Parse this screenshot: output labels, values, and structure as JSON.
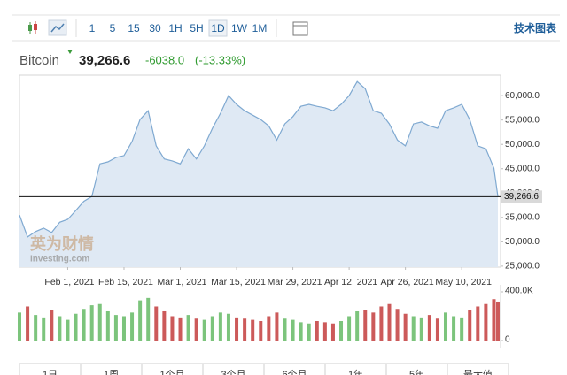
{
  "toolbar": {
    "intervals": [
      "1",
      "5",
      "15",
      "30",
      "1H",
      "5H",
      "1D",
      "1W",
      "1M"
    ],
    "active_index": 6,
    "right_link": "技术图表"
  },
  "header": {
    "name": "Bitcoin",
    "price": "39,266.6",
    "change": "-6038.0",
    "change_percent": "(-13.33%)"
  },
  "watermark": {
    "brand": "英为财情",
    "site": "Investing.com"
  },
  "range_tabs": [
    "1日",
    "1周",
    "1个月",
    "3个月",
    "6个月",
    "1年",
    "5年",
    "最大值"
  ],
  "chart_data": [
    {
      "type": "area",
      "color": "#7fa9d1",
      "fill": "#dfe9f4",
      "grid": false,
      "x": [
        "2021-01-20",
        "2021-01-22",
        "2021-01-24",
        "2021-01-26",
        "2021-01-28",
        "2021-01-30",
        "2021-02-01",
        "2021-02-03",
        "2021-02-05",
        "2021-02-07",
        "2021-02-09",
        "2021-02-11",
        "2021-02-13",
        "2021-02-15",
        "2021-02-17",
        "2021-02-19",
        "2021-02-21",
        "2021-02-23",
        "2021-02-25",
        "2021-02-27",
        "2021-03-01",
        "2021-03-03",
        "2021-03-05",
        "2021-03-07",
        "2021-03-09",
        "2021-03-11",
        "2021-03-13",
        "2021-03-15",
        "2021-03-17",
        "2021-03-19",
        "2021-03-21",
        "2021-03-23",
        "2021-03-25",
        "2021-03-27",
        "2021-03-29",
        "2021-03-31",
        "2021-04-02",
        "2021-04-04",
        "2021-04-06",
        "2021-04-08",
        "2021-04-10",
        "2021-04-12",
        "2021-04-14",
        "2021-04-16",
        "2021-04-18",
        "2021-04-20",
        "2021-04-22",
        "2021-04-24",
        "2021-04-26",
        "2021-04-28",
        "2021-04-30",
        "2021-05-02",
        "2021-05-04",
        "2021-05-06",
        "2021-05-08",
        "2021-05-10",
        "2021-05-12",
        "2021-05-14",
        "2021-05-16",
        "2021-05-18",
        "2021-05-19"
      ],
      "values": [
        35500,
        31000,
        32100,
        32800,
        31900,
        34000,
        34600,
        36400,
        38300,
        39300,
        46000,
        46400,
        47300,
        47700,
        50600,
        55100,
        56900,
        49700,
        47000,
        46600,
        46000,
        49100,
        47000,
        49700,
        53300,
        56400,
        60000,
        58200,
        56900,
        56000,
        55100,
        53800,
        50900,
        54200,
        55700,
        57800,
        58200,
        57800,
        57500,
        56900,
        58200,
        60000,
        62900,
        61400,
        56900,
        56400,
        54200,
        50900,
        49700,
        54200,
        54600,
        53800,
        53300,
        56900,
        57500,
        58200,
        55100,
        49700,
        49100,
        45100,
        39266.6
      ],
      "xlim": [
        "2021-01-20",
        "2021-05-19"
      ],
      "xticks": [
        {
          "value": "2021-02-01",
          "label": "Feb 1, 2021"
        },
        {
          "value": "2021-02-15",
          "label": "Feb 15, 2021"
        },
        {
          "value": "2021-03-01",
          "label": "Mar 1, 2021"
        },
        {
          "value": "2021-03-15",
          "label": "Mar 15, 2021"
        },
        {
          "value": "2021-03-29",
          "label": "Mar 29, 2021"
        },
        {
          "value": "2021-04-12",
          "label": "Apr 12, 2021"
        },
        {
          "value": "2021-04-26",
          "label": "Apr 26, 2021"
        },
        {
          "value": "2021-05-10",
          "label": "May 10, 2021"
        }
      ],
      "ylim": [
        24800,
        64200
      ],
      "yticks": [
        {
          "value": 25000,
          "label": "25,000.0"
        },
        {
          "value": 30000,
          "label": "30,000.0"
        },
        {
          "value": 35000,
          "label": "35,000.0"
        },
        {
          "value": 40000,
          "label": "40,000.0"
        },
        {
          "value": 45000,
          "label": "45,000.0"
        },
        {
          "value": 50000,
          "label": "50,000.0"
        },
        {
          "value": 55000,
          "label": "55,000.0"
        },
        {
          "value": 60000,
          "label": "60,000.0"
        }
      ],
      "reference_line": {
        "value": 39266.6,
        "label": "39,266.6"
      }
    },
    {
      "type": "bar",
      "x": [
        "2021-01-20",
        "2021-01-22",
        "2021-01-24",
        "2021-01-26",
        "2021-01-28",
        "2021-01-30",
        "2021-02-01",
        "2021-02-03",
        "2021-02-05",
        "2021-02-07",
        "2021-02-09",
        "2021-02-11",
        "2021-02-13",
        "2021-02-15",
        "2021-02-17",
        "2021-02-19",
        "2021-02-21",
        "2021-02-23",
        "2021-02-25",
        "2021-02-27",
        "2021-03-01",
        "2021-03-03",
        "2021-03-05",
        "2021-03-07",
        "2021-03-09",
        "2021-03-11",
        "2021-03-13",
        "2021-03-15",
        "2021-03-17",
        "2021-03-19",
        "2021-03-21",
        "2021-03-23",
        "2021-03-25",
        "2021-03-27",
        "2021-03-29",
        "2021-03-31",
        "2021-04-02",
        "2021-04-04",
        "2021-04-06",
        "2021-04-08",
        "2021-04-10",
        "2021-04-12",
        "2021-04-14",
        "2021-04-16",
        "2021-04-18",
        "2021-04-20",
        "2021-04-22",
        "2021-04-24",
        "2021-04-26",
        "2021-04-28",
        "2021-04-30",
        "2021-05-02",
        "2021-05-04",
        "2021-05-06",
        "2021-05-08",
        "2021-05-10",
        "2021-05-12",
        "2021-05-14",
        "2021-05-16",
        "2021-05-18",
        "2021-05-19"
      ],
      "values": [
        230000,
        280000,
        210000,
        190000,
        250000,
        200000,
        170000,
        220000,
        260000,
        290000,
        300000,
        240000,
        210000,
        200000,
        230000,
        330000,
        350000,
        280000,
        240000,
        200000,
        190000,
        210000,
        180000,
        170000,
        200000,
        230000,
        220000,
        190000,
        180000,
        170000,
        160000,
        200000,
        230000,
        180000,
        170000,
        150000,
        140000,
        160000,
        150000,
        140000,
        160000,
        200000,
        240000,
        250000,
        230000,
        280000,
        300000,
        260000,
        220000,
        200000,
        190000,
        210000,
        180000,
        230000,
        200000,
        190000,
        250000,
        280000,
        300000,
        340000,
        320000
      ],
      "colors": [
        "#7cc47c",
        "#cc5a5a",
        "#7cc47c",
        "#7cc47c",
        "#cc5a5a",
        "#7cc47c",
        "#7cc47c",
        "#7cc47c",
        "#7cc47c",
        "#7cc47c",
        "#7cc47c",
        "#7cc47c",
        "#7cc47c",
        "#7cc47c",
        "#7cc47c",
        "#7cc47c",
        "#7cc47c",
        "#cc5a5a",
        "#cc5a5a",
        "#cc5a5a",
        "#cc5a5a",
        "#7cc47c",
        "#cc5a5a",
        "#7cc47c",
        "#7cc47c",
        "#7cc47c",
        "#7cc47c",
        "#cc5a5a",
        "#cc5a5a",
        "#cc5a5a",
        "#cc5a5a",
        "#cc5a5a",
        "#cc5a5a",
        "#7cc47c",
        "#7cc47c",
        "#7cc47c",
        "#7cc47c",
        "#cc5a5a",
        "#cc5a5a",
        "#cc5a5a",
        "#7cc47c",
        "#7cc47c",
        "#7cc47c",
        "#cc5a5a",
        "#cc5a5a",
        "#cc5a5a",
        "#cc5a5a",
        "#cc5a5a",
        "#cc5a5a",
        "#7cc47c",
        "#7cc47c",
        "#cc5a5a",
        "#cc5a5a",
        "#7cc47c",
        "#7cc47c",
        "#7cc47c",
        "#cc5a5a",
        "#cc5a5a",
        "#cc5a5a",
        "#cc5a5a",
        "#cc5a5a"
      ],
      "xlim": [
        "2021-01-20",
        "2021-05-19"
      ],
      "ylim": [
        0,
        458000
      ],
      "yticks": [
        0,
        {
          "value": 400000,
          "label": "400.0K"
        }
      ]
    }
  ]
}
